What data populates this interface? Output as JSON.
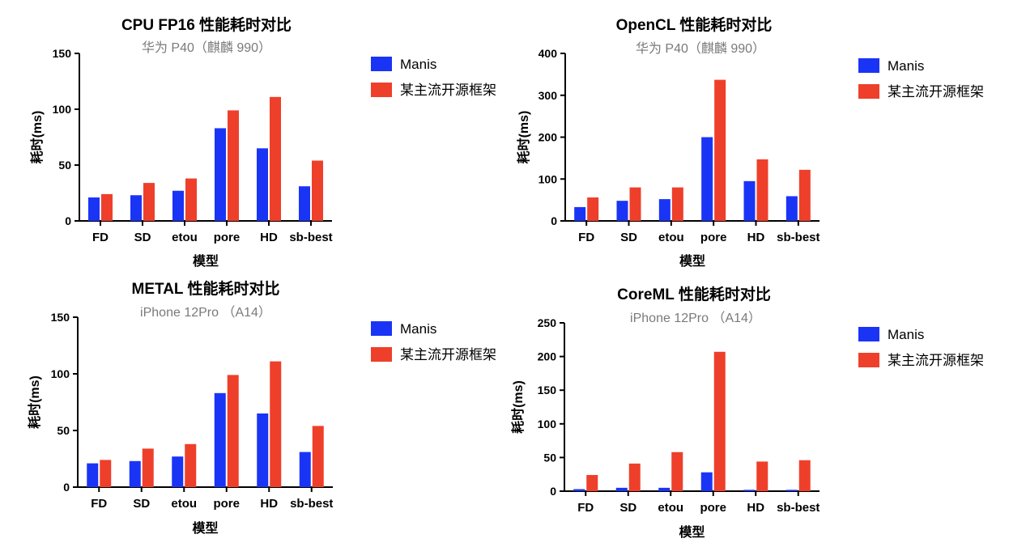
{
  "colors": {
    "manis": "#1a34f6",
    "other": "#ee3f2b",
    "axis": "#000000",
    "subtitle": "#7a7a7a"
  },
  "xlabel": "模型",
  "ylabel": "耗时(ms)",
  "chart_data": [
    {
      "type": "bar",
      "title": "CPU FP16 性能耗时对比",
      "subtitle": "华为 P40（麒麟 990）",
      "xlabel": "模型",
      "ylabel": "耗时(ms)",
      "categories": [
        "FD",
        "SD",
        "etou",
        "pore",
        "HD",
        "sb-best"
      ],
      "ylim": [
        0,
        150
      ],
      "yticks": [
        0,
        50,
        100,
        150
      ],
      "series": [
        {
          "name": "Manis",
          "color": "#1a34f6",
          "values": [
            21,
            23,
            27,
            83,
            65,
            31
          ]
        },
        {
          "name": "某主流开源框架",
          "color": "#ee3f2b",
          "values": [
            24,
            34,
            38,
            99,
            111,
            54
          ]
        }
      ],
      "legend": "right"
    },
    {
      "type": "bar",
      "title": "OpenCL 性能耗时对比",
      "subtitle": "华为 P40（麒麟 990）",
      "xlabel": "模型",
      "ylabel": "耗时(ms)",
      "categories": [
        "FD",
        "SD",
        "etou",
        "pore",
        "HD",
        "sb-best"
      ],
      "ylim": [
        0,
        400
      ],
      "yticks": [
        0,
        100,
        200,
        300,
        400
      ],
      "series": [
        {
          "name": "Manis",
          "color": "#1a34f6",
          "values": [
            33,
            48,
            52,
            200,
            95,
            59
          ]
        },
        {
          "name": "某主流开源框架",
          "color": "#ee3f2b",
          "values": [
            56,
            80,
            80,
            337,
            147,
            122
          ]
        }
      ],
      "legend": "right"
    },
    {
      "type": "bar",
      "title": "METAL 性能耗时对比",
      "subtitle": "iPhone 12Pro （A14）",
      "xlabel": "模型",
      "ylabel": "耗时(ms)",
      "categories": [
        "FD",
        "SD",
        "etou",
        "pore",
        "HD",
        "sb-best"
      ],
      "ylim": [
        0,
        150
      ],
      "yticks": [
        0,
        50,
        100,
        150
      ],
      "series": [
        {
          "name": "Manis",
          "color": "#1a34f6",
          "values": [
            21,
            23,
            27,
            83,
            65,
            31
          ]
        },
        {
          "name": "某主流开源框架",
          "color": "#ee3f2b",
          "values": [
            24,
            34,
            38,
            99,
            111,
            54
          ]
        }
      ],
      "legend": "right"
    },
    {
      "type": "bar",
      "title": "CoreML 性能耗时对比",
      "subtitle": "iPhone 12Pro （A14）",
      "xlabel": "模型",
      "ylabel": "耗时(ms)",
      "categories": [
        "FD",
        "SD",
        "etou",
        "pore",
        "HD",
        "sb-best"
      ],
      "ylim": [
        0,
        250
      ],
      "yticks": [
        0,
        50,
        100,
        150,
        200,
        250
      ],
      "series": [
        {
          "name": "Manis",
          "color": "#1a34f6",
          "values": [
            3,
            5,
            5,
            28,
            2,
            2
          ]
        },
        {
          "name": "某主流开源框架",
          "color": "#ee3f2b",
          "values": [
            24,
            41,
            58,
            207,
            44,
            46
          ]
        }
      ],
      "legend": "right"
    }
  ]
}
